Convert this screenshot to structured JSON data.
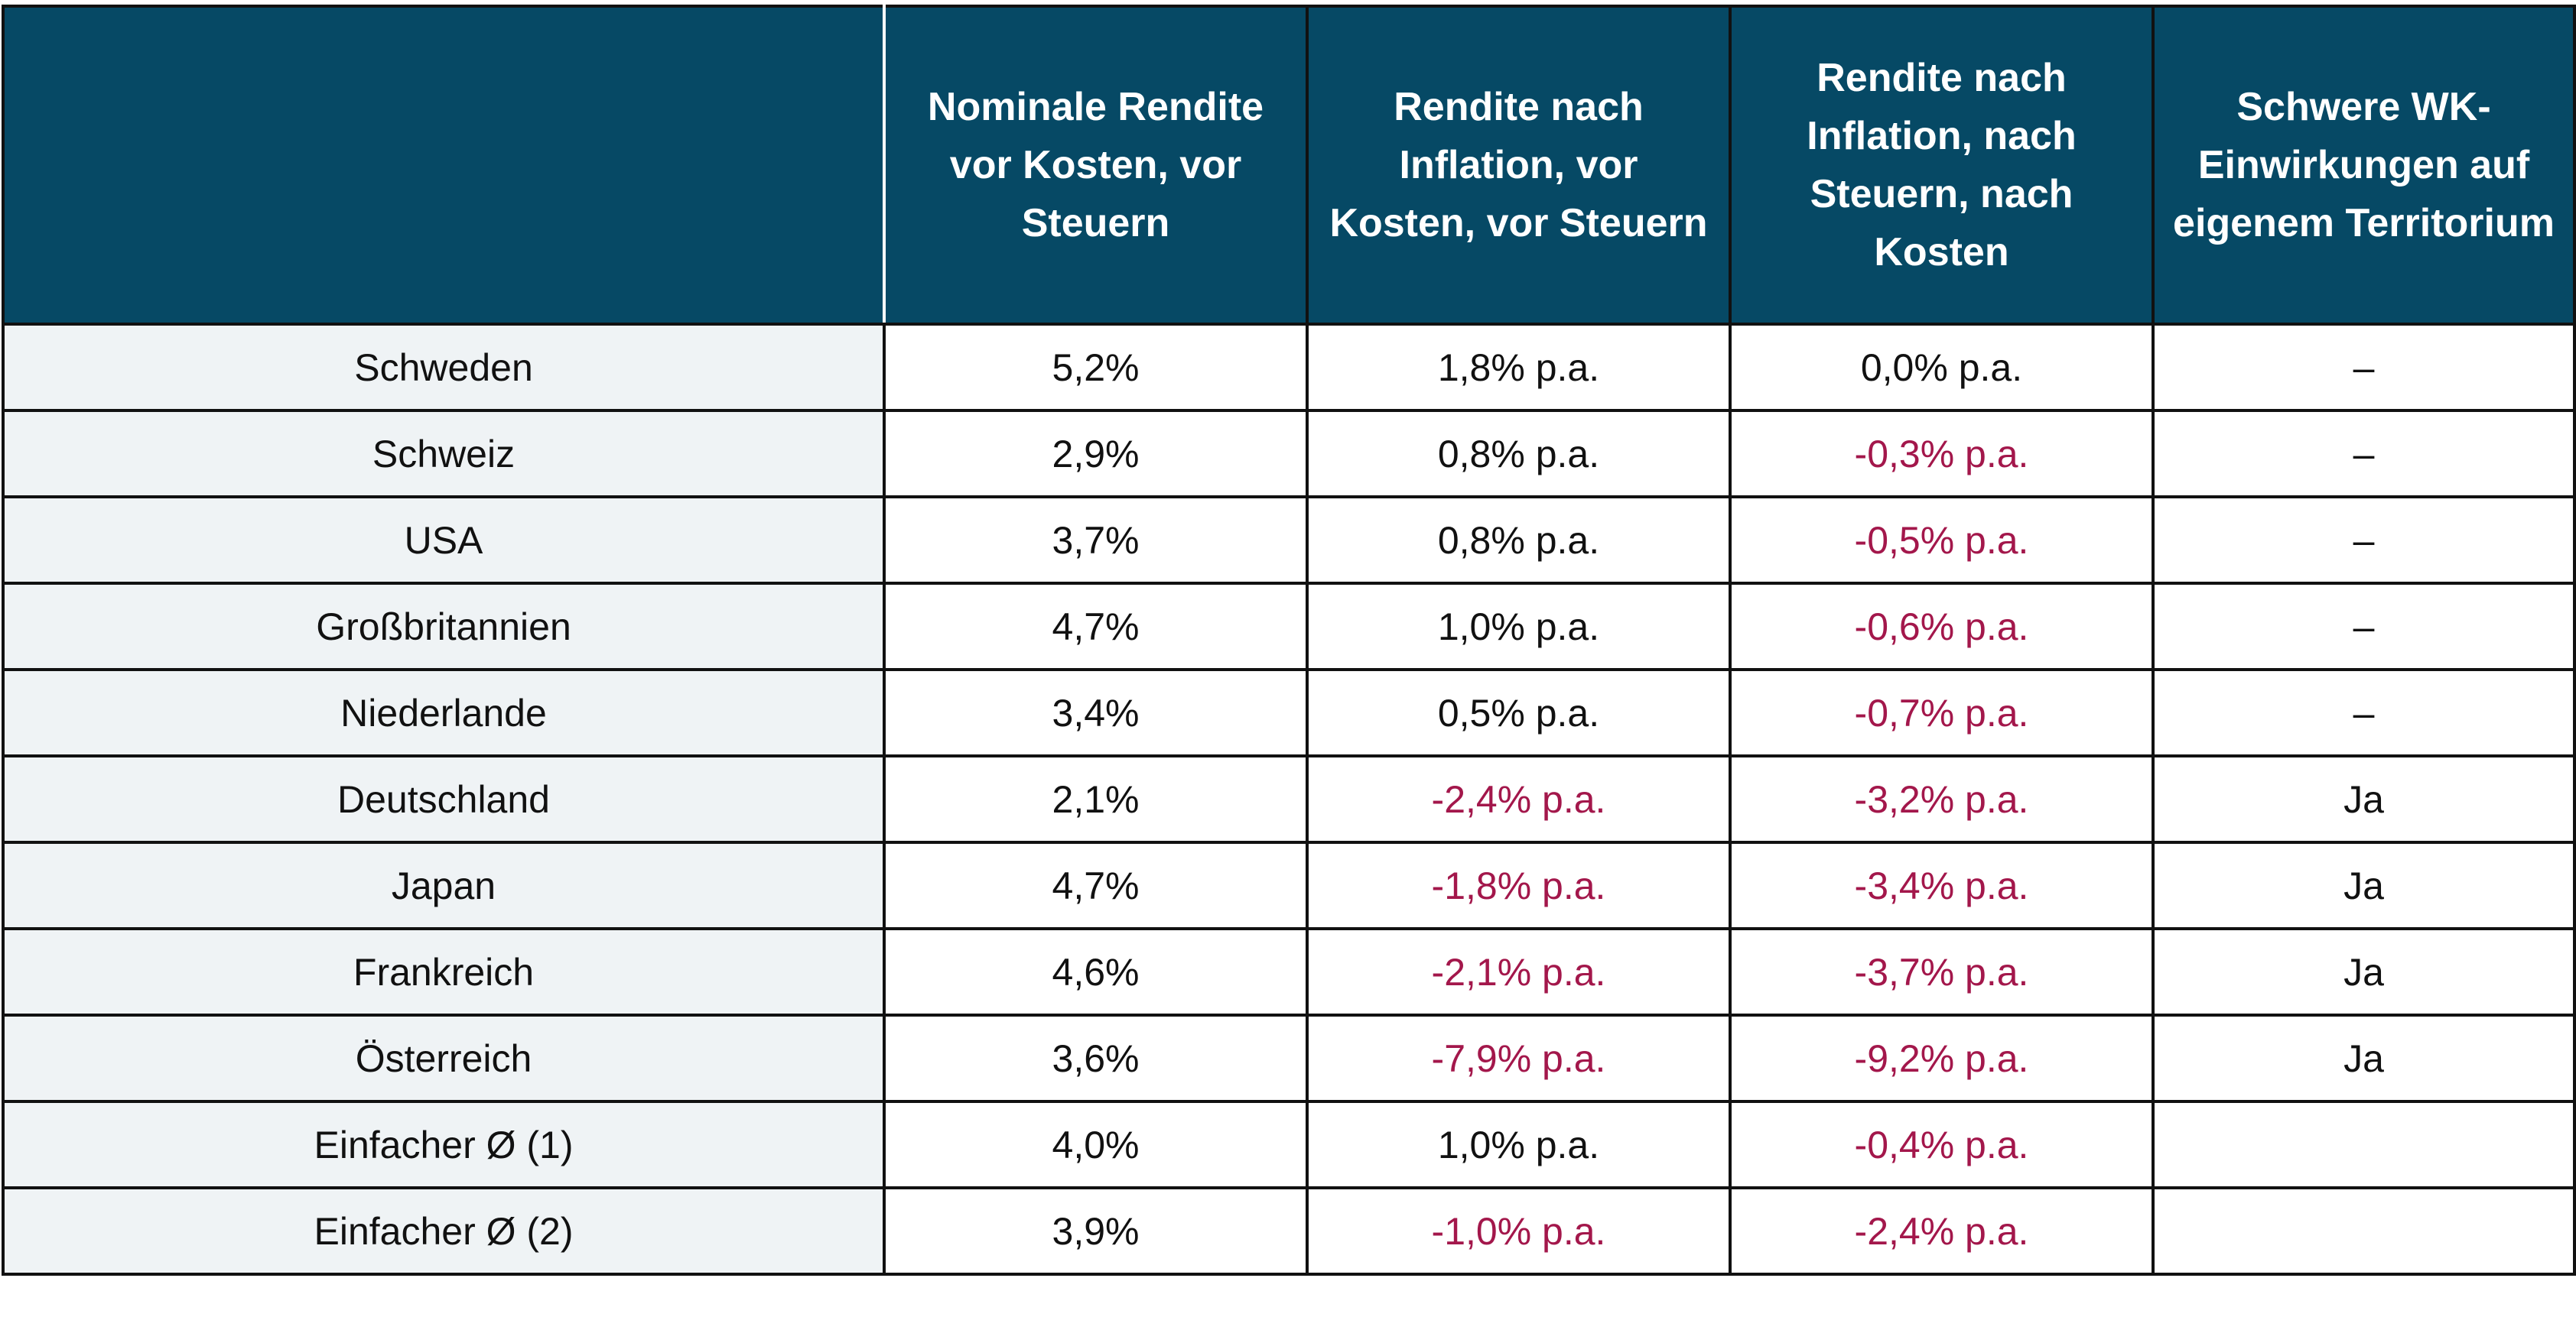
{
  "header": {
    "blank": "",
    "columns": [
      "Nominale Rendite vor Kosten, vor Steuern",
      "Rendite nach Inflation, vor Kosten, vor Steuern",
      "Rendite nach Inflation, nach Steuern, nach Kosten",
      "Schwere WK-Einwirkungen auf eigenem Territorium"
    ]
  },
  "colors": {
    "header_bg": "#064965",
    "negative_text": "#a3174b",
    "first_col_bg": "#eff3f5"
  },
  "rows": [
    {
      "country": "Schweden",
      "nominal": "5,2%",
      "real": "1,8% p.a.",
      "net": "0,0% p.a.",
      "war": "–"
    },
    {
      "country": "Schweiz",
      "nominal": "2,9%",
      "real": "0,8% p.a.",
      "net": "-0,3% p.a.",
      "war": "–"
    },
    {
      "country": "USA",
      "nominal": "3,7%",
      "real": "0,8% p.a.",
      "net": "-0,5% p.a.",
      "war": "–"
    },
    {
      "country": "Großbritannien",
      "nominal": "4,7%",
      "real": "1,0% p.a.",
      "net": "-0,6% p.a.",
      "war": "–"
    },
    {
      "country": "Niederlande",
      "nominal": "3,4%",
      "real": "0,5% p.a.",
      "net": "-0,7% p.a.",
      "war": "–"
    },
    {
      "country": "Deutschland",
      "nominal": "2,1%",
      "real": "-2,4% p.a.",
      "net": "-3,2% p.a.",
      "war": "Ja"
    },
    {
      "country": "Japan",
      "nominal": "4,7%",
      "real": "-1,8% p.a.",
      "net": "-3,4% p.a.",
      "war": "Ja"
    },
    {
      "country": "Frankreich",
      "nominal": "4,6%",
      "real": "-2,1% p.a.",
      "net": "-3,7% p.a.",
      "war": "Ja"
    },
    {
      "country": "Österreich",
      "nominal": "3,6%",
      "real": "-7,9% p.a.",
      "net": "-9,2% p.a.",
      "war": "Ja"
    },
    {
      "country": "Einfacher Ø (1)",
      "nominal": "4,0%",
      "real": "1,0% p.a.",
      "net": "-0,4% p.a.",
      "war": ""
    },
    {
      "country": "Einfacher Ø (2)",
      "nominal": "3,9%",
      "real": "-1,0% p.a.",
      "net": "-2,4% p.a.",
      "war": ""
    }
  ]
}
